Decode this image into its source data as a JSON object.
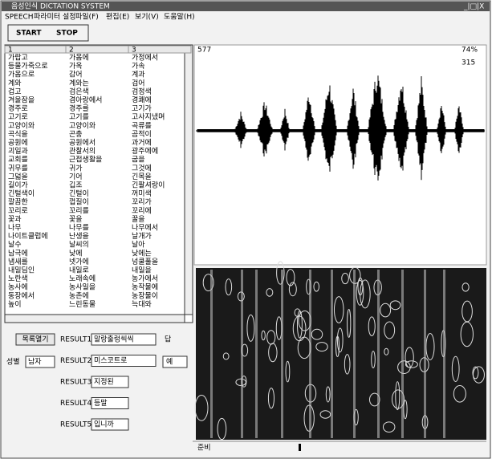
{
  "window": {
    "title": "음성인식 DICTATION SYSTEM",
    "controls": "_|□|X"
  },
  "menu": [
    "SPEECH",
    "파라미터 설정",
    "파일(F)",
    "편집(E)",
    "보기(V)",
    "도움말(H)"
  ],
  "toolbar": [
    "START",
    "STOP"
  ],
  "list": {
    "headers": [
      "1",
      "2",
      "3"
    ],
    "rows": [
      [
        "가랍고",
        "가옴에",
        "가정에서"
      ],
      [
        "등물가죽으로",
        "가옥",
        "가속"
      ],
      [
        "가옴으로",
        "감어",
        "계과"
      ],
      [
        "계와",
        "계와는",
        "검어"
      ],
      [
        "겁고",
        "검은색",
        "검정색"
      ],
      [
        "겨울잠을",
        "겸아랑에서",
        "경쾌에"
      ],
      [
        "경주로",
        "경주를",
        "고기가"
      ],
      [
        "고기로",
        "고기를",
        "고사지냈며"
      ],
      [
        "고양이와",
        "고양이와",
        "곡류를"
      ],
      [
        "곡식을",
        "곤충",
        "곰적이"
      ],
      [
        "공원에",
        "공원에서",
        "과거에"
      ],
      [
        "괴일과",
        "관찰서의",
        "광주에에"
      ],
      [
        "교회를",
        "근접생활을",
        "굽을"
      ],
      [
        "귀무를",
        "귀가",
        "그것에"
      ],
      [
        "그덟을",
        "기어",
        "긴목을"
      ],
      [
        "길이가",
        "깁조",
        "긴팔셔랑이"
      ],
      [
        "긴털색이",
        "긴털이",
        "꺼미색"
      ],
      [
        "깔끔한",
        "껍질이",
        "꼬리가"
      ],
      [
        "꼬리로",
        "꼬리를",
        "꼬리에"
      ],
      [
        "꽃과",
        "꽃을",
        "꿀을"
      ],
      [
        "나무",
        "나무를",
        "나무에서"
      ],
      [
        "나이트클럽에",
        "난생을",
        "날개가"
      ],
      [
        "날수",
        "날씨의",
        "날아"
      ],
      [
        "남극에",
        "낮에",
        "낮에는"
      ],
      [
        "냄새를",
        "넷가에",
        "넝쿨풀을"
      ],
      [
        "내밀딤인",
        "내일로",
        "내일을"
      ],
      [
        "노란색",
        "노래속에",
        "농가에서"
      ],
      [
        "농사에",
        "농사일을",
        "농작물에"
      ],
      [
        "동장에서",
        "농촌에",
        "농장물이"
      ],
      [
        "높이",
        "느린동물",
        "늑대와"
      ]
    ]
  },
  "open_button": "목록열기",
  "gender": {
    "label": "성별",
    "value": "남자"
  },
  "results": [
    {
      "label": "RESULT1",
      "value": "말랑출렁씩씩"
    },
    {
      "label": "RESULT2",
      "value": "미스코트로"
    },
    {
      "label": "RESULT3",
      "value": "지정된"
    },
    {
      "label": "RESULT4",
      "value": "등말"
    },
    {
      "label": "RESULT5",
      "value": "입니까"
    }
  ],
  "answer": {
    "label": "답",
    "value": "예"
  },
  "wave": {
    "left_label": "577",
    "right_top": "74%",
    "right_second": "315"
  },
  "status": "준비"
}
